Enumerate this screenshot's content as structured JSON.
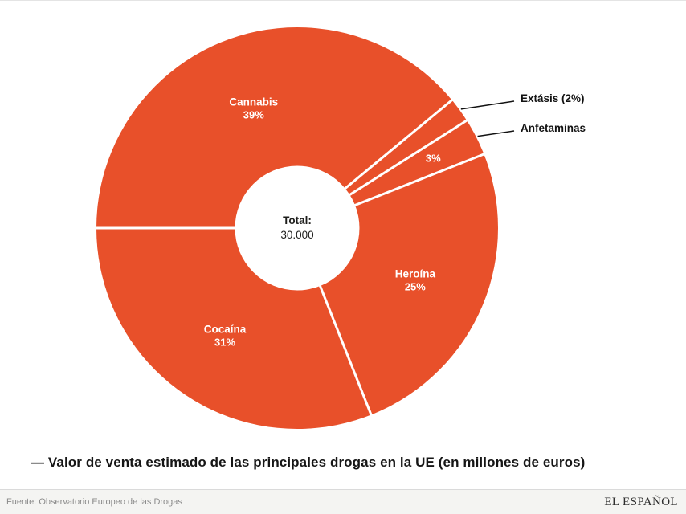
{
  "chart_data": {
    "type": "pie",
    "donut": true,
    "title": "",
    "start_angle_deg": 270,
    "total_label": {
      "line1": "Total:",
      "line2": "30.000"
    },
    "slices": [
      {
        "name": "Cannabis",
        "pct": 39,
        "inner_label": "Cannabis",
        "inner_value": "39%",
        "outer_label": null
      },
      {
        "name": "Extasis",
        "pct": 2,
        "inner_label": null,
        "inner_value": null,
        "outer_label": "Extásis (2%)"
      },
      {
        "name": "Anfetaminas",
        "pct": 3,
        "inner_label": null,
        "inner_value": "3%",
        "outer_label": "Anfetaminas"
      },
      {
        "name": "Heroina",
        "pct": 25,
        "inner_label": "Heroína",
        "inner_value": "25%",
        "outer_label": null
      },
      {
        "name": "Cocaina",
        "pct": 31,
        "inner_label": "Cocaína",
        "inner_value": "31%",
        "outer_label": null
      }
    ],
    "colors": {
      "slice": "#e8502a",
      "separator": "#ffffff",
      "inner_label": "#ffffff",
      "outer_label": "#121212",
      "center_text": "#1d1d1b"
    },
    "legend": "none"
  },
  "caption": "— Valor de venta estimado de las principales drogas en la UE (en millones de euros)",
  "footer": {
    "source": "Fuente: Observatorio Europeo de las Drogas",
    "brand": "EL ESPAÑOL"
  }
}
